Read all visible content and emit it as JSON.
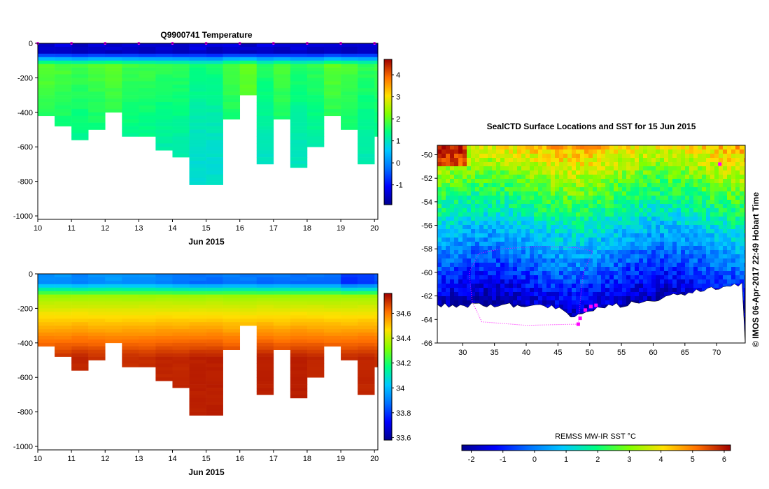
{
  "chart_data": [
    {
      "type": "heatmap",
      "title": "Q9900741  Temperature",
      "xlabel": "Jun 2015",
      "ylabel": "",
      "xlim": [
        10,
        20.1
      ],
      "ylim": [
        -1020,
        0
      ],
      "x_ticks": [
        "10",
        "11",
        "12",
        "13",
        "14",
        "15",
        "16",
        "17",
        "18",
        "19",
        "20"
      ],
      "y_ticks": [
        "0",
        "-200",
        "-400",
        "-600",
        "-800",
        "-1000"
      ],
      "colorbar": {
        "ticks": [
          "-1",
          "0",
          "1",
          "2",
          "3",
          "4"
        ],
        "range": [
          -1.9,
          4.7
        ]
      },
      "profiles": [
        {
          "day": 10.0,
          "max_depth": 410,
          "surface": -1.5,
          "deep": 1.5
        },
        {
          "day": 10.5,
          "max_depth": 480,
          "surface": -1.5,
          "deep": 1.4
        },
        {
          "day": 11.0,
          "max_depth": 560,
          "surface": -1.6,
          "deep": 1.3
        },
        {
          "day": 11.5,
          "max_depth": 500,
          "surface": -1.5,
          "deep": 1.4
        },
        {
          "day": 12.0,
          "max_depth": 400,
          "surface": -1.6,
          "deep": 1.5
        },
        {
          "day": 12.5,
          "max_depth": 540,
          "surface": -1.5,
          "deep": 1.3
        },
        {
          "day": 13.0,
          "max_depth": 540,
          "surface": -1.6,
          "deep": 1.3
        },
        {
          "day": 13.5,
          "max_depth": 620,
          "surface": -1.5,
          "deep": 1.2
        },
        {
          "day": 14.0,
          "max_depth": 660,
          "surface": -1.6,
          "deep": 1.2
        },
        {
          "day": 14.5,
          "max_depth": 810,
          "surface": -1.5,
          "deep": 1.0
        },
        {
          "day": 15.0,
          "max_depth": 810,
          "surface": -1.6,
          "deep": 1.0
        },
        {
          "day": 15.5,
          "max_depth": 430,
          "surface": -1.5,
          "deep": 1.4
        },
        {
          "day": 16.0,
          "max_depth": 300,
          "surface": -1.6,
          "deep": 1.6
        },
        {
          "day": 16.5,
          "max_depth": 700,
          "surface": -1.5,
          "deep": 1.1
        },
        {
          "day": 17.0,
          "max_depth": 430,
          "surface": -1.6,
          "deep": 1.4
        },
        {
          "day": 17.5,
          "max_depth": 720,
          "surface": -1.5,
          "deep": 1.1
        },
        {
          "day": 18.0,
          "max_depth": 600,
          "surface": -1.6,
          "deep": 1.2
        },
        {
          "day": 18.5,
          "max_depth": 410,
          "surface": -1.5,
          "deep": 1.5
        },
        {
          "day": 19.0,
          "max_depth": 500,
          "surface": -1.6,
          "deep": 1.4
        },
        {
          "day": 19.5,
          "max_depth": 700,
          "surface": -1.5,
          "deep": 1.2
        },
        {
          "day": 20.0,
          "max_depth": 530,
          "surface": -1.6,
          "deep": 1.3
        }
      ]
    },
    {
      "type": "heatmap",
      "title": "",
      "xlabel": "Jun 2015",
      "ylabel": "",
      "xlim": [
        10,
        20.1
      ],
      "ylim": [
        -1020,
        0
      ],
      "x_ticks": [
        "10",
        "11",
        "12",
        "13",
        "14",
        "15",
        "16",
        "17",
        "18",
        "19",
        "20"
      ],
      "y_ticks": [
        "0",
        "-200",
        "-400",
        "-600",
        "-800",
        "-1000"
      ],
      "colorbar": {
        "ticks": [
          "33.6",
          "33.8",
          "34",
          "34.2",
          "34.4",
          "34.6"
        ],
        "range": [
          33.58,
          34.76
        ]
      },
      "profiles": [
        {
          "day": 10.0,
          "max_depth": 410,
          "surface": 33.92,
          "deep": 34.7
        },
        {
          "day": 10.5,
          "max_depth": 480,
          "surface": 33.92,
          "deep": 34.7
        },
        {
          "day": 11.0,
          "max_depth": 560,
          "surface": 33.9,
          "deep": 34.71
        },
        {
          "day": 11.5,
          "max_depth": 500,
          "surface": 33.92,
          "deep": 34.7
        },
        {
          "day": 12.0,
          "max_depth": 400,
          "surface": 33.93,
          "deep": 34.69
        },
        {
          "day": 12.5,
          "max_depth": 540,
          "surface": 33.92,
          "deep": 34.7
        },
        {
          "day": 13.0,
          "max_depth": 540,
          "surface": 33.92,
          "deep": 34.7
        },
        {
          "day": 13.5,
          "max_depth": 620,
          "surface": 33.9,
          "deep": 34.71
        },
        {
          "day": 14.0,
          "max_depth": 660,
          "surface": 33.88,
          "deep": 34.71
        },
        {
          "day": 14.5,
          "max_depth": 810,
          "surface": 33.86,
          "deep": 34.72
        },
        {
          "day": 15.0,
          "max_depth": 810,
          "surface": 33.86,
          "deep": 34.72
        },
        {
          "day": 15.5,
          "max_depth": 430,
          "surface": 33.88,
          "deep": 34.7
        },
        {
          "day": 16.0,
          "max_depth": 300,
          "surface": 33.88,
          "deep": 34.69
        },
        {
          "day": 16.5,
          "max_depth": 700,
          "surface": 33.86,
          "deep": 34.72
        },
        {
          "day": 17.0,
          "max_depth": 430,
          "surface": 33.87,
          "deep": 34.7
        },
        {
          "day": 17.5,
          "max_depth": 720,
          "surface": 33.86,
          "deep": 34.72
        },
        {
          "day": 18.0,
          "max_depth": 600,
          "surface": 33.86,
          "deep": 34.71
        },
        {
          "day": 18.5,
          "max_depth": 410,
          "surface": 33.86,
          "deep": 34.7
        },
        {
          "day": 19.0,
          "max_depth": 500,
          "surface": 33.78,
          "deep": 34.7
        },
        {
          "day": 19.5,
          "max_depth": 700,
          "surface": 33.8,
          "deep": 34.71
        },
        {
          "day": 20.0,
          "max_depth": 530,
          "surface": 33.82,
          "deep": 34.7
        }
      ]
    },
    {
      "type": "heatmap",
      "title": "SealCTD Surface Locations and SST for 15 Jun 2015",
      "xlabel": "",
      "ylabel": "",
      "xlim": [
        26,
        74.5
      ],
      "ylim": [
        -66,
        -49.2
      ],
      "x_ticks": [
        "30",
        "35",
        "40",
        "45",
        "50",
        "55",
        "60",
        "65",
        "70"
      ],
      "y_ticks": [
        "-50",
        "-52",
        "-54",
        "-56",
        "-58",
        "-60",
        "-62",
        "-64",
        "-66"
      ],
      "colorbar": {
        "label": "REMSS MW-IR SST °C",
        "ticks": [
          "-2",
          "-1",
          "0",
          "1",
          "2",
          "3",
          "4",
          "5",
          "6"
        ],
        "range": [
          -2.3,
          6.2
        ]
      },
      "sst_front_lat": [
        -50.8,
        -52.5,
        -55.5,
        -58.5,
        -61.5
      ],
      "track_points": [
        {
          "lon": 48.2,
          "lat": -64.4
        },
        {
          "lon": 48.5,
          "lat": -63.9
        },
        {
          "lon": 49.3,
          "lat": -63.2
        },
        {
          "lon": 50.2,
          "lat": -62.9
        },
        {
          "lon": 51.0,
          "lat": -62.8
        },
        {
          "lon": 70.5,
          "lat": -50.8
        }
      ]
    }
  ],
  "copyright": "© IMOS 06-Apr-2017 22:49 Hobart Time",
  "colors": {
    "profile_marker": "#ff00ff",
    "land": "#ffffff",
    "track": "#ff00ff"
  }
}
